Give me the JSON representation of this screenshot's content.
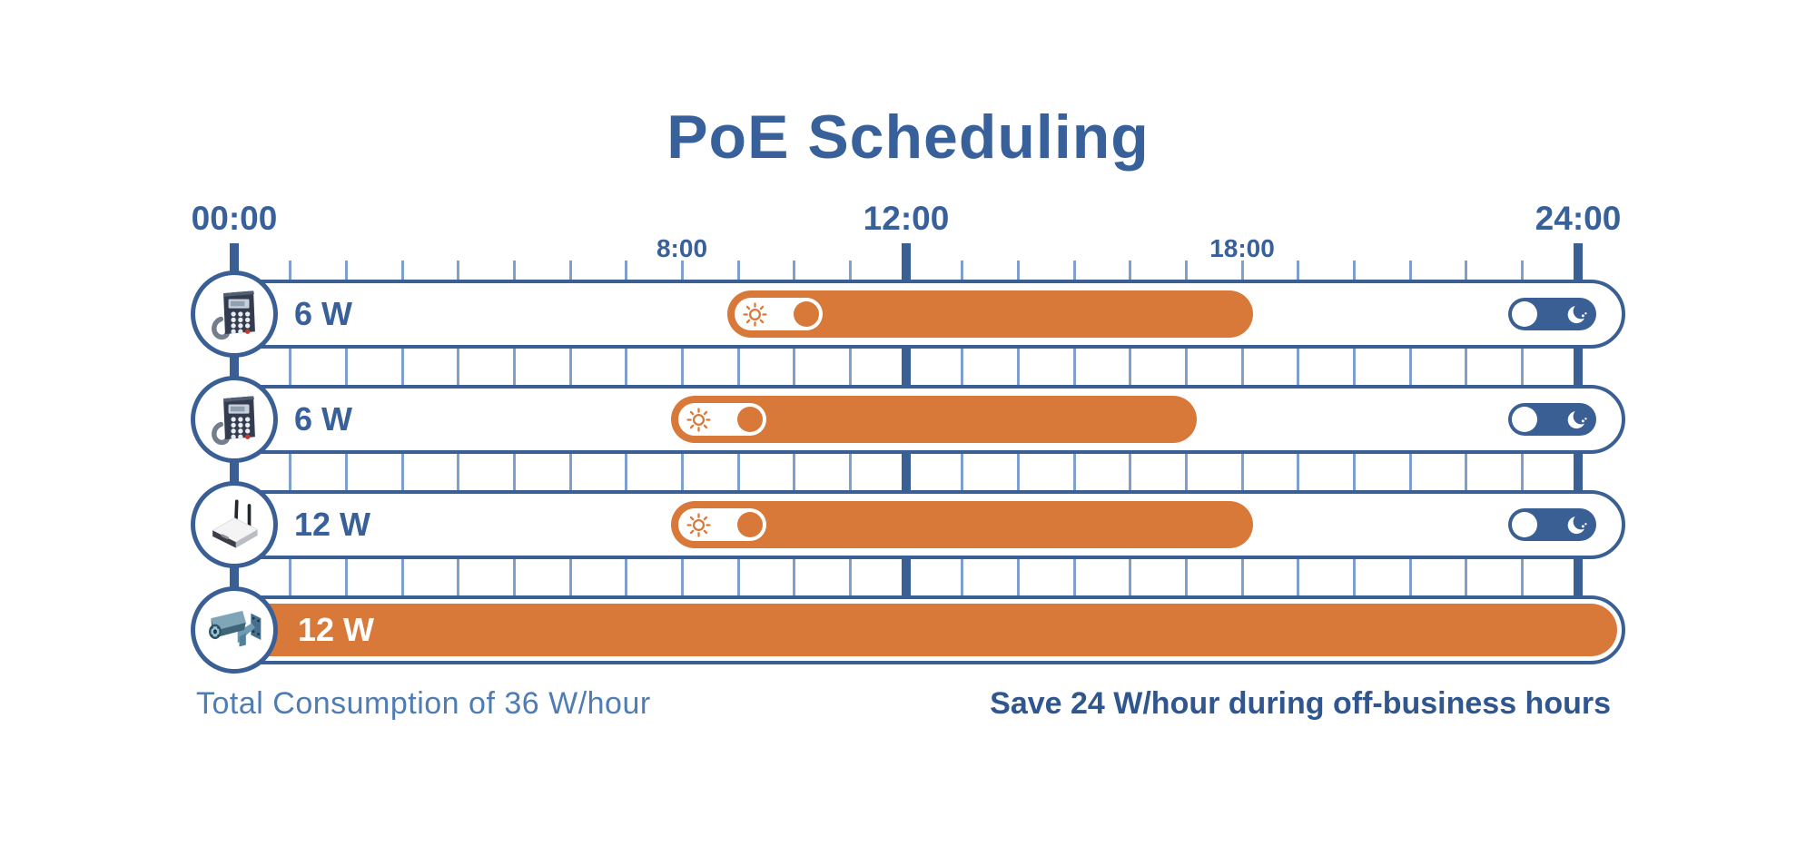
{
  "title": "PoE Scheduling",
  "timeline": {
    "hours_total": 24,
    "major_gridline_hours": [
      0,
      12,
      24
    ],
    "labels": [
      {
        "text": "00:00",
        "hour": 0,
        "size": "major"
      },
      {
        "text": "8:00",
        "hour": 8,
        "size": "minor"
      },
      {
        "text": "12:00",
        "hour": 12,
        "size": "major"
      },
      {
        "text": "18:00",
        "hour": 18,
        "size": "minor"
      },
      {
        "text": "24:00",
        "hour": 24,
        "size": "major"
      }
    ]
  },
  "rows": [
    {
      "device": "ip-phone",
      "watts_label": "6 W",
      "schedule": {
        "type": "scheduled",
        "start_hour": 9,
        "end_hour": 18
      },
      "toggles": [
        "sun-day-toggle",
        "moon-night-toggle"
      ]
    },
    {
      "device": "ip-phone",
      "watts_label": "6 W",
      "schedule": {
        "type": "scheduled",
        "start_hour": 8,
        "end_hour": 17
      },
      "toggles": [
        "sun-day-toggle",
        "moon-night-toggle"
      ]
    },
    {
      "device": "wireless-access-point",
      "watts_label": "12 W",
      "schedule": {
        "type": "scheduled",
        "start_hour": 8,
        "end_hour": 18
      },
      "toggles": [
        "sun-day-toggle",
        "moon-night-toggle"
      ]
    },
    {
      "device": "ip-camera",
      "watts_label": "12 W",
      "schedule": {
        "type": "always_on",
        "start_hour": 0,
        "end_hour": 24
      },
      "toggles": []
    }
  ],
  "footer": {
    "left_note": "Total Consumption of 36 W/hour",
    "right_note": "Save 24 W/hour during off-business hours"
  },
  "colors": {
    "primary_blue": "#3A5F94",
    "text_blue": "#38609A",
    "light_gridline_blue": "#7FA0CF",
    "bar_orange": "#D8793A",
    "footer_left_blue": "#4E7CB3",
    "footer_right_blue": "#2F568E",
    "background": "#FFFFFF"
  },
  "icons": [
    "ip-phone-icon",
    "wireless-access-point-icon",
    "cctv-camera-icon",
    "sun-icon",
    "moon-icon"
  ],
  "chart_data": {
    "type": "bar",
    "title": "PoE Scheduling",
    "x_axis": {
      "unit": "hour",
      "range": [
        0,
        24
      ],
      "ticks_every": 1,
      "labeled_ticks": [
        "00:00",
        "8:00",
        "12:00",
        "18:00",
        "24:00"
      ]
    },
    "categories": [
      "IP phone 6 W",
      "IP phone 6 W",
      "Wireless AP 12 W",
      "IP camera 12 W"
    ],
    "series": [
      {
        "name": "powered-on interval (hours)",
        "values": [
          [
            9,
            18
          ],
          [
            8,
            17
          ],
          [
            8,
            18
          ],
          [
            0,
            24
          ]
        ]
      }
    ],
    "annotations": [
      "Total Consumption of 36 W/hour",
      "Save 24 W/hour during off-business hours"
    ]
  }
}
